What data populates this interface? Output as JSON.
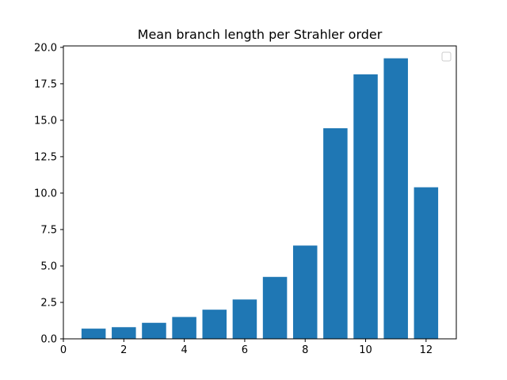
{
  "chart_data": {
    "type": "bar",
    "title": "Mean branch length per Strahler order",
    "xlabel": "",
    "ylabel": "",
    "x": [
      1,
      2,
      3,
      4,
      5,
      6,
      7,
      8,
      9,
      10,
      11,
      12
    ],
    "values": [
      0.7,
      0.8,
      1.1,
      1.5,
      2.0,
      2.7,
      4.25,
      6.4,
      14.45,
      18.15,
      19.25,
      10.4
    ],
    "xlim": [
      0,
      13
    ],
    "ylim": [
      0,
      20.1
    ],
    "xticks": [
      "0",
      "2",
      "4",
      "6",
      "8",
      "10",
      "12"
    ],
    "yticks": [
      "0.0",
      "2.5",
      "5.0",
      "7.5",
      "10.0",
      "12.5",
      "15.0",
      "17.5",
      "20.0"
    ],
    "bar_color": "#1f77b4",
    "legend": {
      "placement": "top-right",
      "entries": []
    },
    "grid": false
  }
}
